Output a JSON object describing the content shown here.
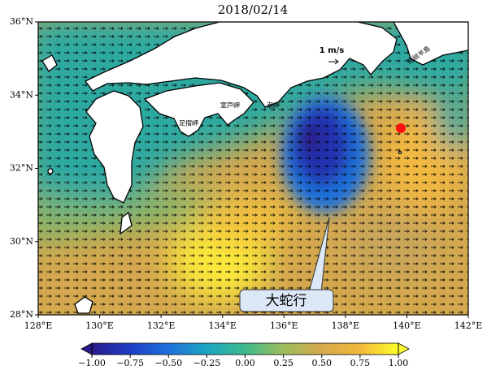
{
  "title": "2018/02/14",
  "map": {
    "xlim": [
      128,
      142
    ],
    "ylim": [
      28,
      36
    ],
    "xticks": [
      {
        "value": 128,
        "label": "128°E"
      },
      {
        "value": 130,
        "label": "130°E"
      },
      {
        "value": 132,
        "label": "132°E"
      },
      {
        "value": 134,
        "label": "134°E"
      },
      {
        "value": 136,
        "label": "136°E"
      },
      {
        "value": 138,
        "label": "138°E"
      },
      {
        "value": 140,
        "label": "140°E"
      },
      {
        "value": 142,
        "label": "142°E"
      }
    ],
    "yticks": [
      {
        "value": 28,
        "label": "28°N"
      },
      {
        "value": 30,
        "label": "30°N"
      },
      {
        "value": 32,
        "label": "32°N"
      },
      {
        "value": 34,
        "label": "34°N"
      },
      {
        "value": 36,
        "label": "36°N"
      }
    ],
    "places": [
      "足摺岬",
      "室戸岬",
      "潮岬",
      "房総半島"
    ],
    "scale_label": "1 m/s",
    "callout": "大蛇行"
  },
  "colorbar": {
    "range": [
      -1,
      1
    ],
    "ticks": [
      {
        "value": -1,
        "label": "−1.00"
      },
      {
        "value": -0.75,
        "label": "−0.75"
      },
      {
        "value": -0.5,
        "label": "−0.50"
      },
      {
        "value": -0.25,
        "label": "−0.25"
      },
      {
        "value": 0,
        "label": "0.00"
      },
      {
        "value": 0.25,
        "label": "0.25"
      },
      {
        "value": 0.5,
        "label": "0.50"
      },
      {
        "value": 0.75,
        "label": "0.75"
      },
      {
        "value": 1,
        "label": "1.00"
      }
    ]
  }
}
